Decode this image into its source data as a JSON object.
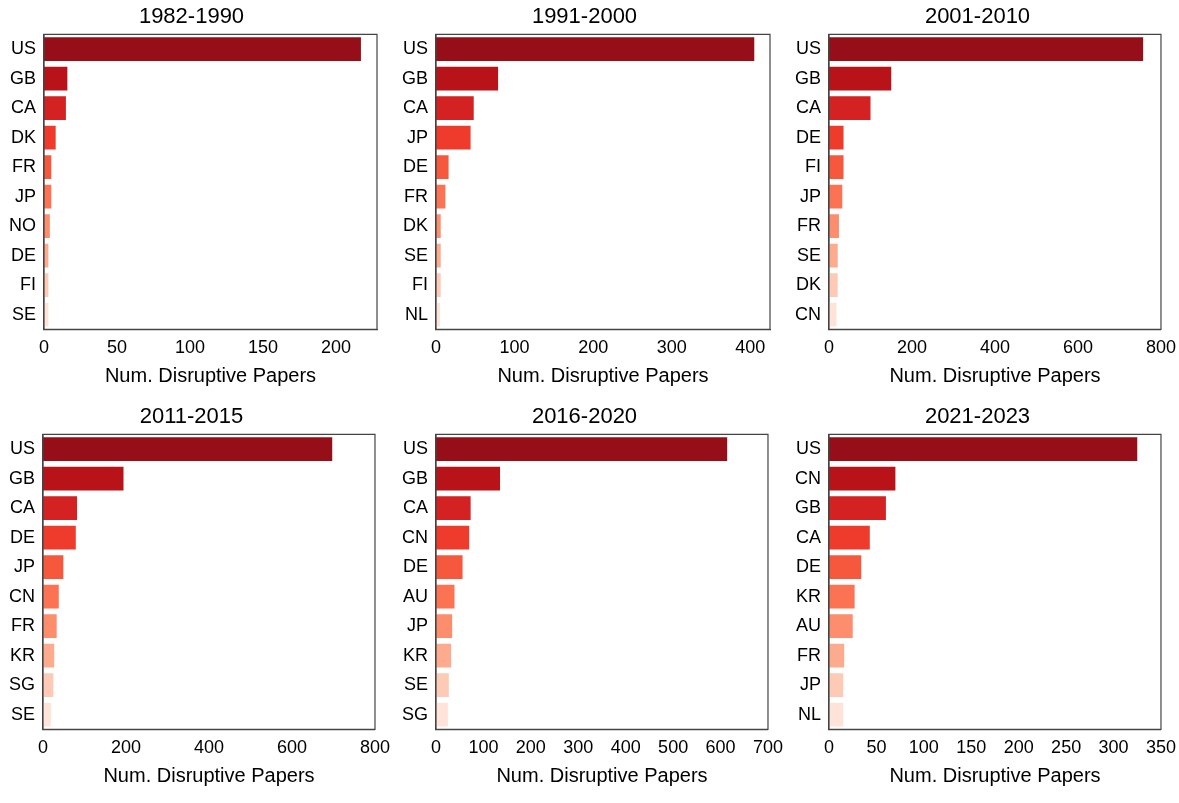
{
  "chart_data": [
    {
      "type": "bar",
      "orientation": "horizontal",
      "title": "1982-1990",
      "xlabel": "Num. Disruptive Papers",
      "categories": [
        "US",
        "GB",
        "CA",
        "DK",
        "FR",
        "JP",
        "NO",
        "DE",
        "FI",
        "SE"
      ],
      "values": [
        217,
        16,
        15,
        8,
        5,
        5,
        4,
        3,
        3,
        3
      ],
      "colors": [
        "#960e17",
        "#b71319",
        "#d42121",
        "#ef3b2c",
        "#f6583e",
        "#fb7353",
        "#fc8d6d",
        "#fcab8f",
        "#fdcab5",
        "#fee4d8"
      ],
      "xlim": [
        0,
        228
      ],
      "xticks": [
        0,
        50,
        100,
        150,
        200
      ]
    },
    {
      "type": "bar",
      "orientation": "horizontal",
      "title": "1991-2000",
      "xlabel": "Num. Disruptive Papers",
      "categories": [
        "US",
        "GB",
        "CA",
        "JP",
        "DE",
        "FR",
        "DK",
        "SE",
        "FI",
        "NL"
      ],
      "values": [
        405,
        79,
        48,
        44,
        16,
        12,
        6,
        6,
        6,
        5
      ],
      "colors": [
        "#960e17",
        "#b71319",
        "#d42121",
        "#ef3b2c",
        "#f6583e",
        "#fb7353",
        "#fc8d6d",
        "#fcab8f",
        "#fdcab5",
        "#fee4d8"
      ],
      "xlim": [
        0,
        425
      ],
      "xticks": [
        0,
        100,
        200,
        300,
        400
      ]
    },
    {
      "type": "bar",
      "orientation": "horizontal",
      "title": "2001-2010",
      "xlabel": "Num. Disruptive Papers",
      "categories": [
        "US",
        "GB",
        "CA",
        "DE",
        "FI",
        "JP",
        "FR",
        "SE",
        "DK",
        "CN"
      ],
      "values": [
        757,
        150,
        100,
        35,
        35,
        32,
        24,
        21,
        21,
        18
      ],
      "colors": [
        "#960e17",
        "#b71319",
        "#d42121",
        "#ef3b2c",
        "#f6583e",
        "#fb7353",
        "#fc8d6d",
        "#fcab8f",
        "#fdcab5",
        "#fee4d8"
      ],
      "xlim": [
        0,
        800
      ],
      "xticks": [
        0,
        200,
        400,
        600,
        800
      ]
    },
    {
      "type": "bar",
      "orientation": "horizontal",
      "title": "2011-2015",
      "xlabel": "Num. Disruptive Papers",
      "categories": [
        "US",
        "GB",
        "CA",
        "DE",
        "JP",
        "CN",
        "FR",
        "KR",
        "SG",
        "SE"
      ],
      "values": [
        697,
        194,
        82,
        79,
        49,
        38,
        33,
        27,
        25,
        19
      ],
      "colors": [
        "#960e17",
        "#b71319",
        "#d42121",
        "#ef3b2c",
        "#f6583e",
        "#fb7353",
        "#fc8d6d",
        "#fcab8f",
        "#fdcab5",
        "#fee4d8"
      ],
      "xlim": [
        0,
        800
      ],
      "xticks": [
        0,
        200,
        400,
        600,
        800
      ]
    },
    {
      "type": "bar",
      "orientation": "horizontal",
      "title": "2016-2020",
      "xlabel": "Num. Disruptive Papers",
      "categories": [
        "US",
        "GB",
        "CA",
        "CN",
        "DE",
        "AU",
        "JP",
        "KR",
        "SE",
        "SG"
      ],
      "values": [
        614,
        135,
        73,
        70,
        56,
        39,
        34,
        32,
        27,
        25
      ],
      "colors": [
        "#960e17",
        "#b71319",
        "#d42121",
        "#ef3b2c",
        "#f6583e",
        "#fb7353",
        "#fc8d6d",
        "#fcab8f",
        "#fdcab5",
        "#fee4d8"
      ],
      "xlim": [
        0,
        700
      ],
      "xticks": [
        0,
        100,
        200,
        300,
        400,
        500,
        600,
        700
      ]
    },
    {
      "type": "bar",
      "orientation": "horizontal",
      "title": "2021-2023",
      "xlabel": "Num. Disruptive Papers",
      "categories": [
        "US",
        "CN",
        "GB",
        "CA",
        "DE",
        "KR",
        "AU",
        "FR",
        "JP",
        "NL"
      ],
      "values": [
        325,
        70,
        60,
        43,
        34,
        27,
        25,
        16,
        15,
        15
      ],
      "colors": [
        "#960e17",
        "#b71319",
        "#d42121",
        "#ef3b2c",
        "#f6583e",
        "#fb7353",
        "#fc8d6d",
        "#fcab8f",
        "#fdcab5",
        "#fee4d8"
      ],
      "xlim": [
        0,
        350
      ],
      "xticks": [
        0,
        50,
        100,
        150,
        200,
        250,
        300,
        350
      ]
    }
  ]
}
